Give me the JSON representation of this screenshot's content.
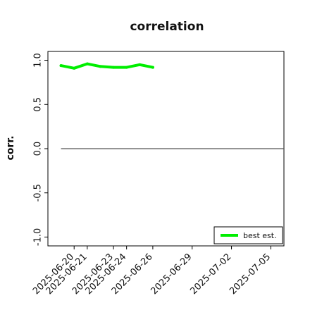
{
  "chart_data": {
    "type": "line",
    "title": "correlation",
    "xlabel": "",
    "ylabel": "corr.",
    "ylim": [
      -1.1,
      1.1
    ],
    "xlim": [
      "2025-06-18",
      "2025-07-06"
    ],
    "grid": false,
    "legend": "bottom-right",
    "yticks": [
      -1.0,
      -0.5,
      0.0,
      0.5,
      1.0
    ],
    "ytick_labels": [
      "-1.0",
      "-0.5",
      "0.0",
      "0.5",
      "1.0"
    ],
    "xticks": [
      "2025-06-20",
      "2025-06-21",
      "2025-06-23",
      "2025-06-24",
      "2025-06-26",
      "2025-06-29",
      "2025-07-02",
      "2025-07-05"
    ],
    "xtick_labels": [
      "2025-06-20",
      "2025-06-21",
      "2025-06-23",
      "2025-06-24",
      "2025-06-26",
      "2025-06-29",
      "2025-07-02",
      "2025-07-05"
    ],
    "xtick_label_colors": [
      "#000000",
      "#000000",
      "#000000",
      "#000000",
      "#008000",
      "#000000",
      "#000000",
      "#000000"
    ],
    "series": [
      {
        "name": "best est.",
        "color": "#00ee00",
        "x": [
          "2025-06-19",
          "2025-06-20",
          "2025-06-21",
          "2025-06-22",
          "2025-06-23",
          "2025-06-24",
          "2025-06-25",
          "2025-06-26"
        ],
        "values": [
          0.94,
          0.91,
          0.96,
          0.93,
          0.92,
          0.92,
          0.95,
          0.92
        ]
      }
    ],
    "reference_line": {
      "y": 0.0,
      "x_from": "2025-06-19",
      "x_to": "2025-07-06",
      "color": "#555555"
    }
  }
}
